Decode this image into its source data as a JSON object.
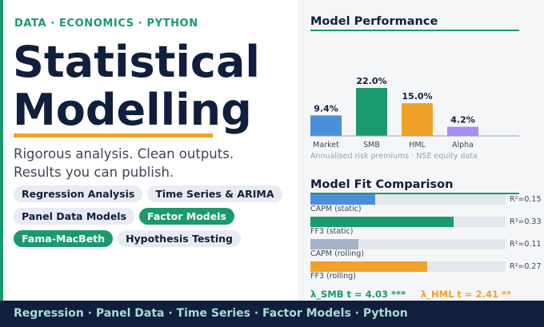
{
  "hero": {
    "eyebrow": "DATA  ·  ECONOMICS  ·  PYTHON",
    "title_line1": "Statistical",
    "title_line2": "Modelling",
    "tagline_line1": "Rigorous analysis. Clean outputs.",
    "tagline_line2": "Results you can publish."
  },
  "chips": [
    {
      "label": "Regression Analysis",
      "highlight": false
    },
    {
      "label": "Time Series & ARIMA",
      "highlight": false
    },
    {
      "label": "Panel Data Models",
      "highlight": false
    },
    {
      "label": "Factor Models",
      "highlight": true
    },
    {
      "label": "Fama-MacBeth",
      "highlight": true
    },
    {
      "label": "Hypothesis Testing",
      "highlight": false
    }
  ],
  "performance": {
    "title": "Model Performance",
    "caption": "Annualised risk premiums  ·  NSE equity data"
  },
  "chart_data": {
    "type": "bar",
    "title": "Model Performance",
    "categories": [
      "Market",
      "SMB",
      "HML",
      "Alpha"
    ],
    "values": [
      9.4,
      22.0,
      15.0,
      4.2
    ],
    "value_labels": [
      "9.4%",
      "22.0%",
      "15.0%",
      "4.2%"
    ],
    "colors": [
      "#4a8fd9",
      "#1a9a6e",
      "#f0a12a",
      "#a98cf0"
    ],
    "ylim": [
      0,
      22
    ],
    "grid": false,
    "xlabel": "",
    "ylabel": ""
  },
  "fit": {
    "title": "Model Fit Comparison",
    "rows": [
      {
        "label": "",
        "r2_text": "R²=0.15",
        "r2": 0.15,
        "color": "#4a8fd9"
      },
      {
        "label": "CAPM (static)",
        "r2_text": "R²=0.33",
        "r2": 0.33,
        "color": "#1a9a6e"
      },
      {
        "label": "FF3 (static)",
        "r2_text": "R²=0.11",
        "r2": 0.11,
        "color": "#a4b4c8"
      },
      {
        "label": "CAPM (rolling)",
        "r2_text": "R²=0.27",
        "r2": 0.27,
        "color": "#f0a12a"
      }
    ],
    "last_label": "FF3 (rolling)",
    "lambda_smb": "λ_SMB  t = 4.03  ***",
    "lambda_hml": "λ_HML  t = 2.41  **",
    "lambda_smb_color": "#1a9a6e",
    "lambda_hml_color": "#f0a12a"
  },
  "footer": {
    "text": "Regression  ·  Panel Data  ·  Time Series  ·  Factor Models  ·  Python"
  }
}
